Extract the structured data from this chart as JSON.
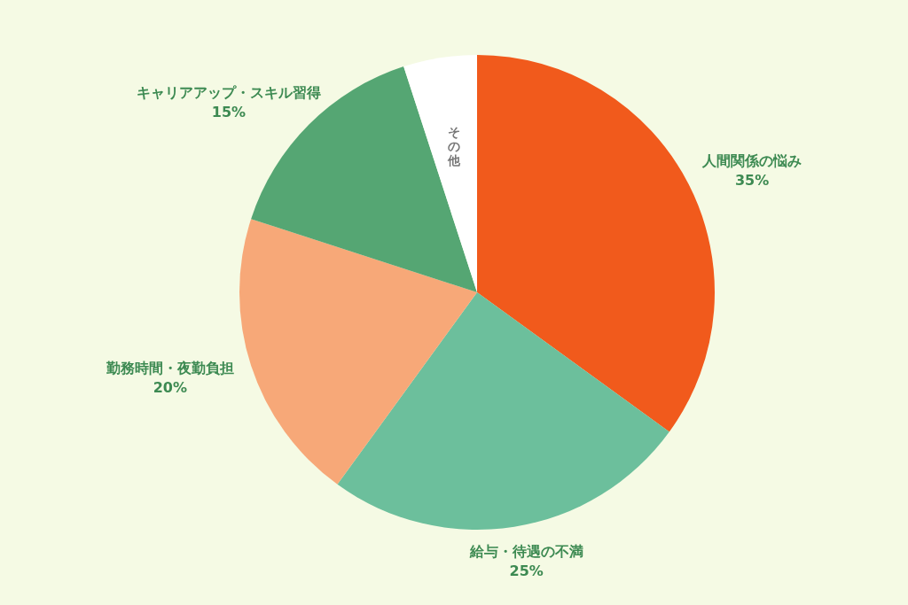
{
  "chart_data": {
    "type": "pie",
    "categories": [
      "人間関係の悩み",
      "給与・待遇の不満",
      "勤務時間・夜勤負担",
      "キャリアアップ・スキル習得",
      "その他"
    ],
    "values": [
      35,
      25,
      20,
      15,
      5
    ],
    "colors": [
      "#f15a1c",
      "#6cbf9c",
      "#f7a878",
      "#55a673",
      "#ffffff"
    ],
    "value_labels": [
      "35%",
      "25%",
      "20%",
      "15%",
      null
    ]
  }
}
